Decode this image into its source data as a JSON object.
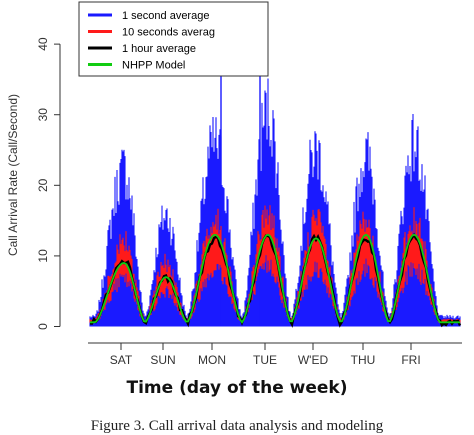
{
  "chart_data": {
    "type": "line",
    "ylabel": "Call Arrival Rate (Call/Second)",
    "xlabel": "Time (day of the week)",
    "caption": "Figure 3.  Call arrival data analysis and modeling",
    "categories": [
      "SAT",
      "SUN",
      "MON",
      "TUE",
      "WED",
      "THU",
      "FRI"
    ],
    "x_tick_labels": [
      "SAT",
      "SUN",
      "MON",
      "TUE",
      "W'ED",
      "THU",
      "FRI"
    ],
    "ylim": [
      0,
      42
    ],
    "yticks": [
      0,
      10,
      20,
      30,
      40
    ],
    "legend_position": "top-left",
    "series": [
      {
        "name": "1 second average",
        "color": "#1a1aff",
        "daily_peak": [
          24,
          17,
          28,
          33,
          27,
          26,
          28
        ]
      },
      {
        "name": "10 seconds  averag",
        "color": "#ff1a1a",
        "daily_peak": [
          12,
          9,
          15,
          16,
          15,
          15,
          15
        ]
      },
      {
        "name": "1 hour average",
        "color": "#000000",
        "daily_peak": [
          9.5,
          7,
          12.5,
          12.5,
          12.5,
          12.5,
          12.5
        ]
      },
      {
        "name": "NHPP Model",
        "color": "#11cc11",
        "daily_peak": [
          9,
          7,
          13,
          13,
          12.5,
          13,
          13
        ]
      }
    ],
    "night_floor": 0.5,
    "spikes": [
      {
        "day": "MON",
        "value": 38
      },
      {
        "day": "TUE",
        "value": 42
      }
    ]
  }
}
